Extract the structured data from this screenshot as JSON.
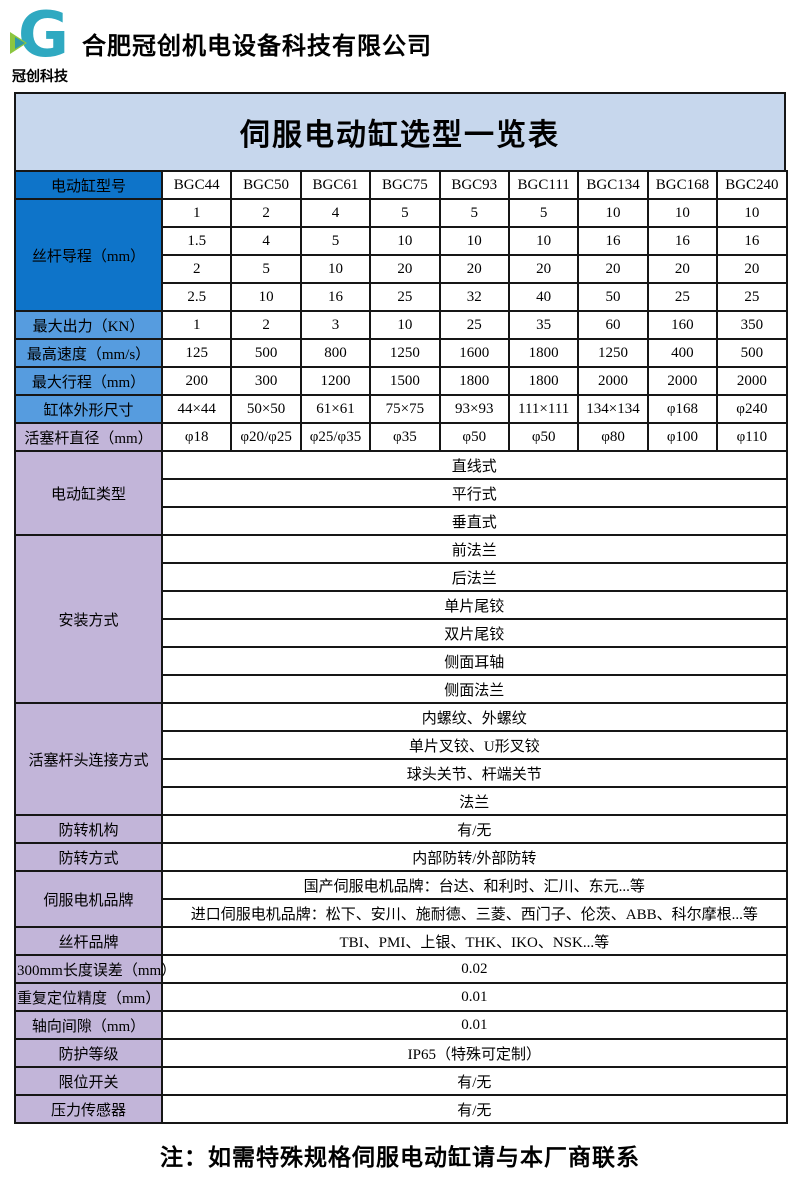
{
  "header": {
    "company_name": "合肥冠创机电设备科技有限公司",
    "tagline": "冠创科技",
    "logo_letter": "G"
  },
  "colors": {
    "title_bar_bg": "#C7D7ED",
    "label_deep_blue": "#0E74C9",
    "label_mid_blue": "#569CDF",
    "label_purple": "#C2B5D9",
    "border": "#161616",
    "logo_teal": "#2FA9C1",
    "logo_green": "#8CC63F"
  },
  "table": {
    "title": "伺服电动缸选型一览表",
    "note": "注：如需特殊规格伺服电动缸请与本厂商联系",
    "sections": [
      {
        "label": "电动缸型号",
        "style": "deep",
        "rows": [
          {
            "cells": [
              "BGC44",
              "BGC50",
              "BGC61",
              "BGC75",
              "BGC93",
              "BGC111",
              "BGC134",
              "BGC168",
              "BGC240"
            ]
          }
        ]
      },
      {
        "label": "丝杆导程（mm）",
        "style": "deep",
        "rows": [
          {
            "cells": [
              "1",
              "2",
              "4",
              "5",
              "5",
              "5",
              "10",
              "10",
              "10"
            ]
          },
          {
            "cells": [
              "1.5",
              "4",
              "5",
              "10",
              "10",
              "10",
              "16",
              "16",
              "16"
            ]
          },
          {
            "cells": [
              "2",
              "5",
              "10",
              "20",
              "20",
              "20",
              "20",
              "20",
              "20"
            ]
          },
          {
            "cells": [
              "2.5",
              "10",
              "16",
              "25",
              "32",
              "40",
              "50",
              "25",
              "25"
            ]
          }
        ]
      },
      {
        "label": "最大出力（KN）",
        "style": "mid",
        "rows": [
          {
            "cells": [
              "1",
              "2",
              "3",
              "10",
              "25",
              "35",
              "60",
              "160",
              "350"
            ]
          }
        ]
      },
      {
        "label": "最高速度（mm/s）",
        "style": "mid",
        "rows": [
          {
            "cells": [
              "125",
              "500",
              "800",
              "1250",
              "1600",
              "1800",
              "1250",
              "400",
              "500"
            ]
          }
        ]
      },
      {
        "label": "最大行程（mm）",
        "style": "mid",
        "rows": [
          {
            "cells": [
              "200",
              "300",
              "1200",
              "1500",
              "1800",
              "1800",
              "2000",
              "2000",
              "2000"
            ]
          }
        ]
      },
      {
        "label": "缸体外形尺寸",
        "style": "mid",
        "rows": [
          {
            "cells": [
              "44×44",
              "50×50",
              "61×61",
              "75×75",
              "93×93",
              "111×111",
              "134×134",
              "φ168",
              "φ240"
            ]
          }
        ]
      },
      {
        "label": "活塞杆直径（mm）",
        "style": "purple",
        "rows": [
          {
            "cells": [
              "φ18",
              "φ20/φ25",
              "φ25/φ35",
              "φ35",
              "φ50",
              "φ50",
              "φ80",
              "φ100",
              "φ110"
            ]
          }
        ]
      },
      {
        "label": "电动缸类型",
        "style": "purple",
        "rows": [
          {
            "merged": "直线式"
          },
          {
            "merged": "平行式"
          },
          {
            "merged": "垂直式"
          }
        ]
      },
      {
        "label": "安装方式",
        "style": "purple",
        "rows": [
          {
            "merged": "前法兰"
          },
          {
            "merged": "后法兰"
          },
          {
            "merged": "单片尾铰"
          },
          {
            "merged": "双片尾铰"
          },
          {
            "merged": "侧面耳轴"
          },
          {
            "merged": "侧面法兰"
          }
        ]
      },
      {
        "label": "活塞杆头连接方式",
        "style": "purple",
        "rows": [
          {
            "merged": "内螺纹、外螺纹"
          },
          {
            "merged": "单片叉铰、U形叉铰"
          },
          {
            "merged": "球头关节、杆端关节"
          },
          {
            "merged": "法兰"
          }
        ]
      },
      {
        "label": "防转机构",
        "style": "purple",
        "rows": [
          {
            "merged": "有/无"
          }
        ]
      },
      {
        "label": "防转方式",
        "style": "purple",
        "rows": [
          {
            "merged": "内部防转/外部防转"
          }
        ]
      },
      {
        "label": "伺服电机品牌",
        "style": "purple",
        "rows": [
          {
            "merged": "国产伺服电机品牌：台达、和利时、汇川、东元...等"
          },
          {
            "merged": "进口伺服电机品牌：松下、安川、施耐德、三菱、西门子、伦茨、ABB、科尔摩根...等"
          }
        ]
      },
      {
        "label": "丝杆品牌",
        "style": "purple",
        "rows": [
          {
            "merged": "TBI、PMI、上银、THK、IKO、NSK...等"
          }
        ]
      },
      {
        "label": "300mm长度误差（mm）",
        "style": "purple",
        "rows": [
          {
            "merged": "0.02"
          }
        ]
      },
      {
        "label": "重复定位精度（mm）",
        "style": "purple",
        "rows": [
          {
            "merged": "0.01"
          }
        ]
      },
      {
        "label": "轴向间隙（mm）",
        "style": "purple",
        "rows": [
          {
            "merged": "0.01"
          }
        ]
      },
      {
        "label": "防护等级",
        "style": "purple",
        "rows": [
          {
            "merged": "IP65（特殊可定制）"
          }
        ]
      },
      {
        "label": "限位开关",
        "style": "purple",
        "rows": [
          {
            "merged": "有/无"
          }
        ]
      },
      {
        "label": "压力传感器",
        "style": "purple",
        "rows": [
          {
            "merged": "有/无"
          }
        ]
      }
    ]
  }
}
